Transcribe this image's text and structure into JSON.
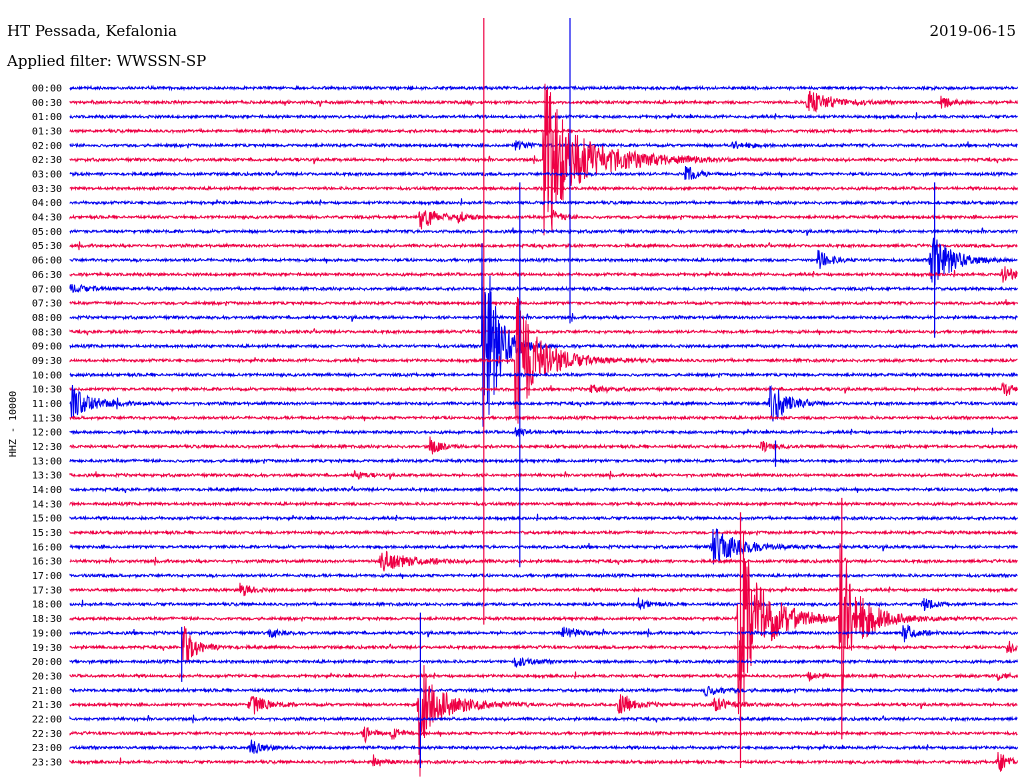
{
  "header": {
    "station": "HT Pessada, Kefalonia",
    "filter": "Applied filter: WWSSN-SP",
    "date": "2019-06-15"
  },
  "chart_data": {
    "type": "line",
    "title": "HT Pessada, Kefalonia",
    "subtitle": "Applied filter: WWSSN-SP",
    "date": "2019-06-15",
    "ylabel": "HHZ - 10000",
    "xlabel": "",
    "row_interval_minutes": 30,
    "row_labels": [
      "00:00",
      "00:30",
      "01:00",
      "01:30",
      "02:00",
      "02:30",
      "03:00",
      "03:30",
      "04:00",
      "04:30",
      "05:00",
      "05:30",
      "06:00",
      "06:30",
      "07:00",
      "07:30",
      "08:00",
      "08:30",
      "09:00",
      "09:30",
      "10:00",
      "10:30",
      "11:00",
      "11:30",
      "12:00",
      "12:30",
      "13:00",
      "13:30",
      "14:00",
      "14:30",
      "15:00",
      "15:30",
      "16:00",
      "16:30",
      "17:00",
      "17:30",
      "18:00",
      "18:30",
      "19:00",
      "19:30",
      "20:00",
      "20:30",
      "21:00",
      "21:30",
      "22:00",
      "22:30",
      "23:00",
      "23:30"
    ],
    "series_colors": [
      "#0000ee",
      "#ee0044"
    ],
    "events": [
      {
        "row": 1,
        "x": 0.78,
        "amp": 12,
        "width": 0.025
      },
      {
        "row": 1,
        "x": 0.92,
        "amp": 7,
        "width": 0.01
      },
      {
        "row": 4,
        "x": 0.7,
        "amp": 4,
        "width": 0.015
      },
      {
        "row": 4,
        "x": 0.47,
        "amp": 4,
        "width": 0.015
      },
      {
        "row": 5,
        "x": 0.51,
        "amp": 40,
        "width": 0.05
      },
      {
        "row": 5,
        "x": 0.5,
        "amp": 100,
        "width": 0.008
      },
      {
        "row": 6,
        "x": 0.65,
        "amp": 10,
        "width": 0.01
      },
      {
        "row": 9,
        "x": 0.37,
        "amp": 14,
        "width": 0.015
      },
      {
        "row": 9,
        "x": 0.41,
        "amp": 5,
        "width": 0.01
      },
      {
        "row": 9,
        "x": 0.51,
        "amp": 6,
        "width": 0.01
      },
      {
        "row": 12,
        "x": 0.79,
        "amp": 10,
        "width": 0.012
      },
      {
        "row": 12,
        "x": 0.91,
        "amp": 30,
        "width": 0.02
      },
      {
        "row": 13,
        "x": 0.985,
        "amp": 10,
        "width": 0.01
      },
      {
        "row": 14,
        "x": 0.0,
        "amp": 4,
        "width": 0.02
      },
      {
        "row": 18,
        "x": 0.44,
        "amp": 75,
        "width": 0.015
      },
      {
        "row": 18,
        "x": 0.435,
        "amp": 120,
        "width": 0.004
      },
      {
        "row": 19,
        "x": 0.475,
        "amp": 40,
        "width": 0.03
      },
      {
        "row": 19,
        "x": 0.47,
        "amp": 80,
        "width": 0.006
      },
      {
        "row": 21,
        "x": 0.985,
        "amp": 8,
        "width": 0.01
      },
      {
        "row": 21,
        "x": 0.55,
        "amp": 4,
        "width": 0.015
      },
      {
        "row": 22,
        "x": 0.0,
        "amp": 18,
        "width": 0.02
      },
      {
        "row": 22,
        "x": 0.74,
        "amp": 22,
        "width": 0.015
      },
      {
        "row": 24,
        "x": 0.47,
        "amp": 5,
        "width": 0.01
      },
      {
        "row": 25,
        "x": 0.38,
        "amp": 9,
        "width": 0.01
      },
      {
        "row": 25,
        "x": 0.73,
        "amp": 6,
        "width": 0.01
      },
      {
        "row": 27,
        "x": 0.3,
        "amp": 5,
        "width": 0.008
      },
      {
        "row": 32,
        "x": 0.68,
        "amp": 20,
        "width": 0.025
      },
      {
        "row": 33,
        "x": 0.33,
        "amp": 10,
        "width": 0.03
      },
      {
        "row": 35,
        "x": 0.18,
        "amp": 8,
        "width": 0.01
      },
      {
        "row": 36,
        "x": 0.6,
        "amp": 6,
        "width": 0.01
      },
      {
        "row": 36,
        "x": 0.9,
        "amp": 7,
        "width": 0.01
      },
      {
        "row": 37,
        "x": 0.71,
        "amp": 60,
        "width": 0.03
      },
      {
        "row": 37,
        "x": 0.705,
        "amp": 110,
        "width": 0.005
      },
      {
        "row": 37,
        "x": 0.815,
        "amp": 45,
        "width": 0.025
      },
      {
        "row": 37,
        "x": 0.812,
        "amp": 90,
        "width": 0.005
      },
      {
        "row": 38,
        "x": 0.52,
        "amp": 7,
        "width": 0.015
      },
      {
        "row": 38,
        "x": 0.88,
        "amp": 10,
        "width": 0.012
      },
      {
        "row": 38,
        "x": 0.21,
        "amp": 5,
        "width": 0.01
      },
      {
        "row": 39,
        "x": 0.12,
        "amp": 14,
        "width": 0.015
      },
      {
        "row": 39,
        "x": 0.118,
        "amp": 30,
        "width": 0.003
      },
      {
        "row": 39,
        "x": 0.99,
        "amp": 7,
        "width": 0.008
      },
      {
        "row": 40,
        "x": 0.47,
        "amp": 5,
        "width": 0.015
      },
      {
        "row": 41,
        "x": 0.78,
        "amp": 5,
        "width": 0.01
      },
      {
        "row": 41,
        "x": 0.98,
        "amp": 5,
        "width": 0.008
      },
      {
        "row": 42,
        "x": 0.67,
        "amp": 5,
        "width": 0.02
      },
      {
        "row": 43,
        "x": 0.37,
        "amp": 28,
        "width": 0.03
      },
      {
        "row": 43,
        "x": 0.368,
        "amp": 65,
        "width": 0.004
      },
      {
        "row": 43,
        "x": 0.19,
        "amp": 12,
        "width": 0.015
      },
      {
        "row": 43,
        "x": 0.58,
        "amp": 10,
        "width": 0.015
      },
      {
        "row": 43,
        "x": 0.68,
        "amp": 8,
        "width": 0.015
      },
      {
        "row": 45,
        "x": 0.31,
        "amp": 9,
        "width": 0.008
      },
      {
        "row": 45,
        "x": 0.34,
        "amp": 6,
        "width": 0.01
      },
      {
        "row": 46,
        "x": 0.19,
        "amp": 8,
        "width": 0.012
      },
      {
        "row": 47,
        "x": 0.32,
        "amp": 10,
        "width": 0.008
      },
      {
        "row": 47,
        "x": 0.98,
        "amp": 12,
        "width": 0.01
      }
    ],
    "vertical_spikes": [
      {
        "x": 0.437,
        "from_row": 0,
        "to_row": 37
      },
      {
        "x": 0.528,
        "from_row": 0,
        "to_row": 16
      },
      {
        "x": 0.475,
        "from_row": 7,
        "to_row": 33
      },
      {
        "x": 0.913,
        "from_row": 7,
        "to_row": 17
      },
      {
        "x": 0.708,
        "from_row": 30,
        "to_row": 47
      },
      {
        "x": 0.815,
        "from_row": 29,
        "to_row": 45
      },
      {
        "x": 0.37,
        "from_row": 37,
        "to_row": 47
      },
      {
        "x": 0.118,
        "from_row": 38,
        "to_row": 41
      },
      {
        "x": 0.745,
        "from_row": 25,
        "to_row": 26
      }
    ]
  }
}
